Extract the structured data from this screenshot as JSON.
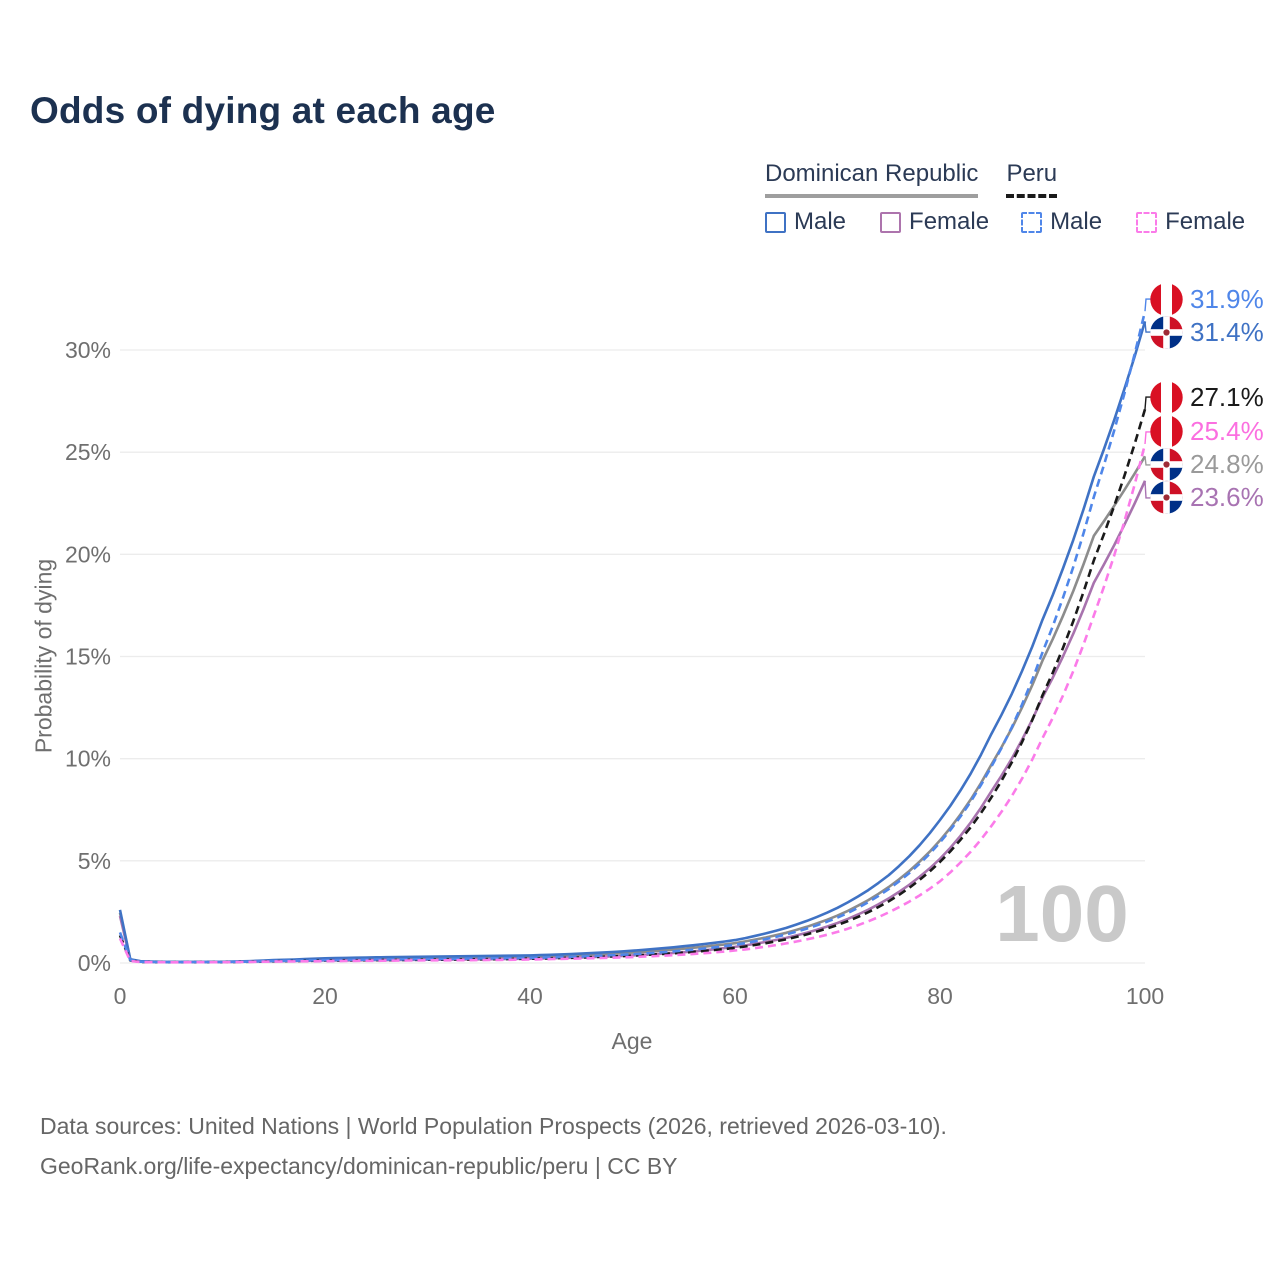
{
  "title": "Odds of dying at each age",
  "colors": {
    "title_text": "#1c3150",
    "legend_text": "#2b3a55",
    "axis_text": "#6f6f6f",
    "grid": "#ececec",
    "watermark": "#c9c9c9",
    "footer_text": "#666666"
  },
  "legend": {
    "groups": [
      {
        "label": "Dominican Republic",
        "line_style": "solid",
        "rule_color": "#9e9e9e",
        "items": [
          {
            "label": "Male",
            "color": "#3f72c4"
          },
          {
            "label": "Female",
            "color": "#ad74ad"
          }
        ]
      },
      {
        "label": "Peru",
        "line_style": "dashed",
        "rule_color": "#1a1a1a",
        "items": [
          {
            "label": "Male",
            "color": "#4f86e9"
          },
          {
            "label": "Female",
            "color": "#fb7be9"
          }
        ]
      }
    ]
  },
  "axes": {
    "x": {
      "label": "Age",
      "ticks": [
        0,
        20,
        40,
        60,
        80,
        100
      ]
    },
    "y": {
      "label": "Probability of dying",
      "ticks": [
        0,
        5,
        10,
        15,
        20,
        25,
        30
      ],
      "tick_suffix": "%"
    }
  },
  "watermark": "100",
  "end_labels": [
    {
      "text": "31.9%",
      "value": 31.9,
      "flag": "peru",
      "color": "#4f86e9",
      "series": "Peru - Male"
    },
    {
      "text": "31.4%",
      "value": 31.4,
      "flag": "dominican-republic",
      "color": "#3f72c4",
      "series": "Dominican Republic - Male"
    },
    {
      "text": "27.1%",
      "value": 27.1,
      "flag": "peru",
      "color": "#1a1a1a",
      "series": "Peru - Both sexes"
    },
    {
      "text": "25.4%",
      "value": 25.4,
      "flag": "peru",
      "color": "#fb6fe0",
      "series": "Peru - Female"
    },
    {
      "text": "24.8%",
      "value": 24.8,
      "flag": "dominican-republic",
      "color": "#9a9a9a",
      "series": "Dominican Republic - Both sexes"
    },
    {
      "text": "23.6%",
      "value": 23.6,
      "flag": "dominican-republic",
      "color": "#a873b2",
      "series": "Dominican Republic - Female"
    }
  ],
  "chart_data": {
    "type": "line",
    "title": "Odds of dying at each age",
    "xlabel": "Age",
    "ylabel": "Probability of dying",
    "xlim": [
      0,
      100
    ],
    "ylim": [
      0,
      32.5
    ],
    "y_unit": "percent",
    "grid": "horizontal",
    "x": [
      0,
      1,
      2,
      3,
      5,
      10,
      15,
      20,
      25,
      30,
      35,
      40,
      45,
      50,
      55,
      60,
      65,
      70,
      75,
      80,
      85,
      90,
      95,
      100
    ],
    "series": [
      {
        "name": "Dominican Republic - Both sexes",
        "country": "Dominican Republic",
        "sex": "both",
        "style": "solid",
        "color": "#8c8c8c",
        "values": [
          2.45,
          0.16,
          0.08,
          0.06,
          0.045,
          0.055,
          0.12,
          0.18,
          0.22,
          0.25,
          0.28,
          0.31,
          0.39,
          0.51,
          0.7,
          0.97,
          1.48,
          2.32,
          3.72,
          6.0,
          9.7,
          14.8,
          20.9,
          24.8
        ]
      },
      {
        "name": "Dominican Republic - Female",
        "country": "Dominican Republic",
        "sex": "female",
        "style": "solid",
        "color": "#a873ae",
        "values": [
          2.3,
          0.15,
          0.07,
          0.055,
          0.04,
          0.05,
          0.09,
          0.12,
          0.14,
          0.16,
          0.18,
          0.21,
          0.27,
          0.37,
          0.53,
          0.79,
          1.23,
          1.96,
          3.16,
          5.1,
          8.4,
          13.0,
          18.6,
          23.6
        ]
      },
      {
        "name": "Dominican Republic - Male",
        "country": "Dominican Republic",
        "sex": "male",
        "style": "solid",
        "color": "#3f72c4",
        "values": [
          2.6,
          0.18,
          0.09,
          0.07,
          0.05,
          0.06,
          0.14,
          0.23,
          0.28,
          0.31,
          0.34,
          0.37,
          0.46,
          0.6,
          0.82,
          1.12,
          1.72,
          2.7,
          4.3,
          7.0,
          11.2,
          16.8,
          23.8,
          31.4
        ]
      },
      {
        "name": "Peru - Both sexes",
        "country": "Peru",
        "sex": "both",
        "style": "dashed",
        "color": "#1a1a1a",
        "values": [
          1.35,
          0.12,
          0.055,
          0.045,
          0.04,
          0.045,
          0.085,
          0.12,
          0.14,
          0.16,
          0.18,
          0.21,
          0.27,
          0.36,
          0.51,
          0.74,
          1.16,
          1.86,
          3.02,
          4.95,
          8.1,
          13.1,
          19.7,
          27.1
        ]
      },
      {
        "name": "Peru - Male",
        "country": "Peru",
        "sex": "male",
        "style": "dashed",
        "color": "#4f86e9",
        "values": [
          1.5,
          0.14,
          0.065,
          0.05,
          0.045,
          0.05,
          0.1,
          0.14,
          0.17,
          0.19,
          0.22,
          0.25,
          0.32,
          0.43,
          0.61,
          0.89,
          1.4,
          2.22,
          3.62,
          5.9,
          9.6,
          15.2,
          22.8,
          31.9
        ]
      },
      {
        "name": "Peru - Female",
        "country": "Peru",
        "sex": "female",
        "style": "dashed",
        "color": "#fb7be9",
        "values": [
          1.2,
          0.1,
          0.05,
          0.04,
          0.035,
          0.04,
          0.07,
          0.09,
          0.11,
          0.13,
          0.14,
          0.17,
          0.22,
          0.29,
          0.41,
          0.61,
          0.96,
          1.52,
          2.48,
          4.0,
          6.7,
          11.0,
          17.0,
          25.4
        ]
      }
    ]
  },
  "footer": {
    "line1": "Data sources: United Nations | World Population Prospects (2026, retrieved 2026-03-10).",
    "line2": "GeoRank.org/life-expectancy/dominican-republic/peru | CC BY"
  }
}
